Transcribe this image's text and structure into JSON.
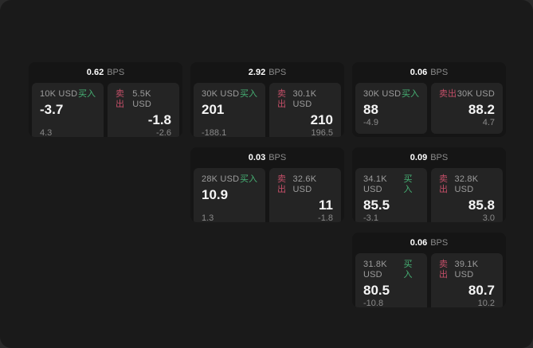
{
  "labels": {
    "bps_unit": "BPS",
    "buy": "买入",
    "sell": "卖出"
  },
  "colors": {
    "buy": "#46b174",
    "sell": "#c44f68",
    "panel_bg": "#1a1a1a",
    "card_bg": "#151515",
    "tile_bg": "#242424"
  },
  "cards": [
    {
      "bps": "0.62",
      "buy": {
        "amount": "10K USD",
        "price": "-3.7",
        "sub": "4.3"
      },
      "sell": {
        "amount": "5.5K USD",
        "price": "-1.8",
        "sub": "-2.6"
      }
    },
    {
      "bps": "2.92",
      "buy": {
        "amount": "30K USD",
        "price": "201",
        "sub": "-188.1"
      },
      "sell": {
        "amount": "30.1K USD",
        "price": "210",
        "sub": "196.5"
      }
    },
    {
      "bps": "0.06",
      "buy": {
        "amount": "30K USD",
        "price": "88",
        "sub": "-4.9"
      },
      "sell": {
        "amount": "30K USD",
        "price": "88.2",
        "sub": "4.7"
      }
    },
    {
      "bps": "0.03",
      "buy": {
        "amount": "28K USD",
        "price": "10.9",
        "sub": "1.3"
      },
      "sell": {
        "amount": "32.6K USD",
        "price": "11",
        "sub": "-1.8"
      }
    },
    {
      "bps": "0.09",
      "buy": {
        "amount": "34.1K USD",
        "price": "85.5",
        "sub": "-3.1"
      },
      "sell": {
        "amount": "32.8K USD",
        "price": "85.8",
        "sub": "3.0"
      }
    },
    {
      "bps": "0.06",
      "buy": {
        "amount": "31.8K USD",
        "price": "80.5",
        "sub": "-10.8"
      },
      "sell": {
        "amount": "39.1K USD",
        "price": "80.7",
        "sub": "10.2"
      }
    }
  ]
}
